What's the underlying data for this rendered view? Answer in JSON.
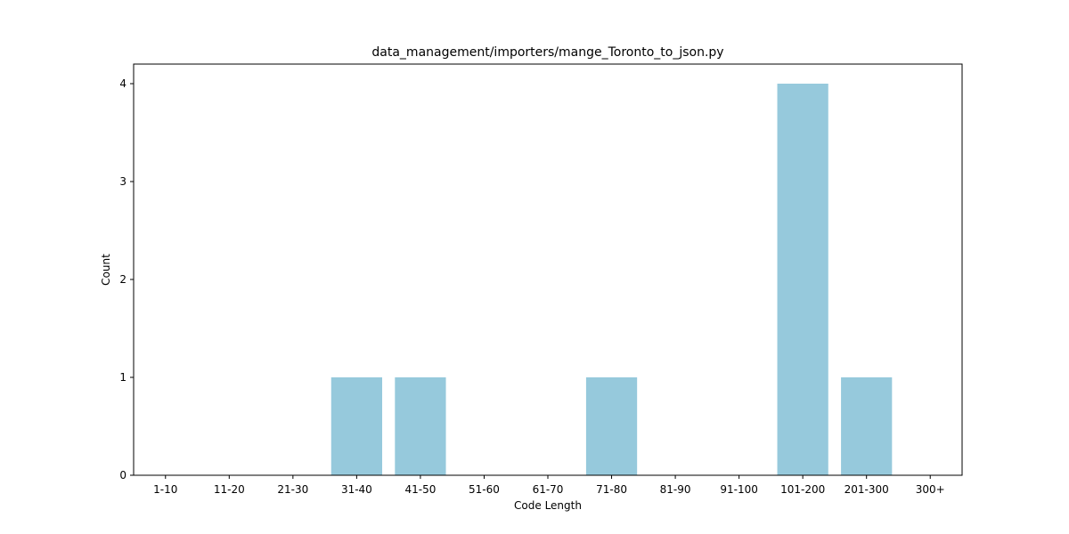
{
  "chart_data": {
    "type": "bar",
    "title": "data_management/importers/mange_Toronto_to_json.py",
    "xlabel": "Code Length",
    "ylabel": "Count",
    "categories": [
      "1-10",
      "11-20",
      "21-30",
      "31-40",
      "41-50",
      "51-60",
      "61-70",
      "71-80",
      "81-90",
      "91-100",
      "101-200",
      "201-300",
      "300+"
    ],
    "values": [
      0,
      0,
      0,
      1,
      1,
      0,
      0,
      1,
      0,
      0,
      4,
      1,
      0
    ],
    "ylim": [
      0,
      4.2
    ],
    "yticks": [
      "0",
      "1",
      "2",
      "3",
      "4"
    ],
    "bar_color": "#96c9dc",
    "grid": false
  }
}
